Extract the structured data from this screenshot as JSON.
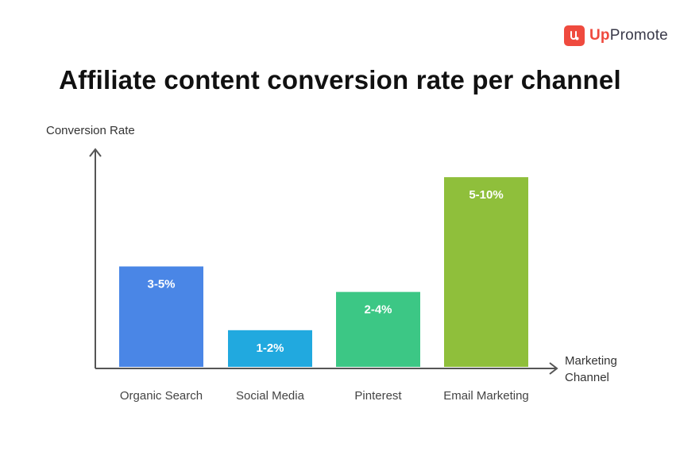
{
  "brand": {
    "name_prefix": "Up",
    "name_suffix": "Promote",
    "color": "#ef4a3e"
  },
  "chart_data": {
    "type": "bar",
    "title": "Affiliate content conversion rate per channel",
    "ylabel": "Conversion Rate",
    "xlabel": "Marketing Channel",
    "xlabel_lines": [
      "Marketing",
      "Channel"
    ],
    "categories": [
      "Organic Search",
      "Social Media",
      "Pinterest",
      "Email Marketing"
    ],
    "values": [
      4,
      1.5,
      3,
      7.5
    ],
    "labels": [
      "3-5%",
      "1-2%",
      "2-4%",
      "5-10%"
    ],
    "colors": [
      "#4a86e6",
      "#21a9df",
      "#3cc785",
      "#8fbf3b"
    ],
    "ylim": [
      0,
      8.5
    ],
    "grid": false
  }
}
